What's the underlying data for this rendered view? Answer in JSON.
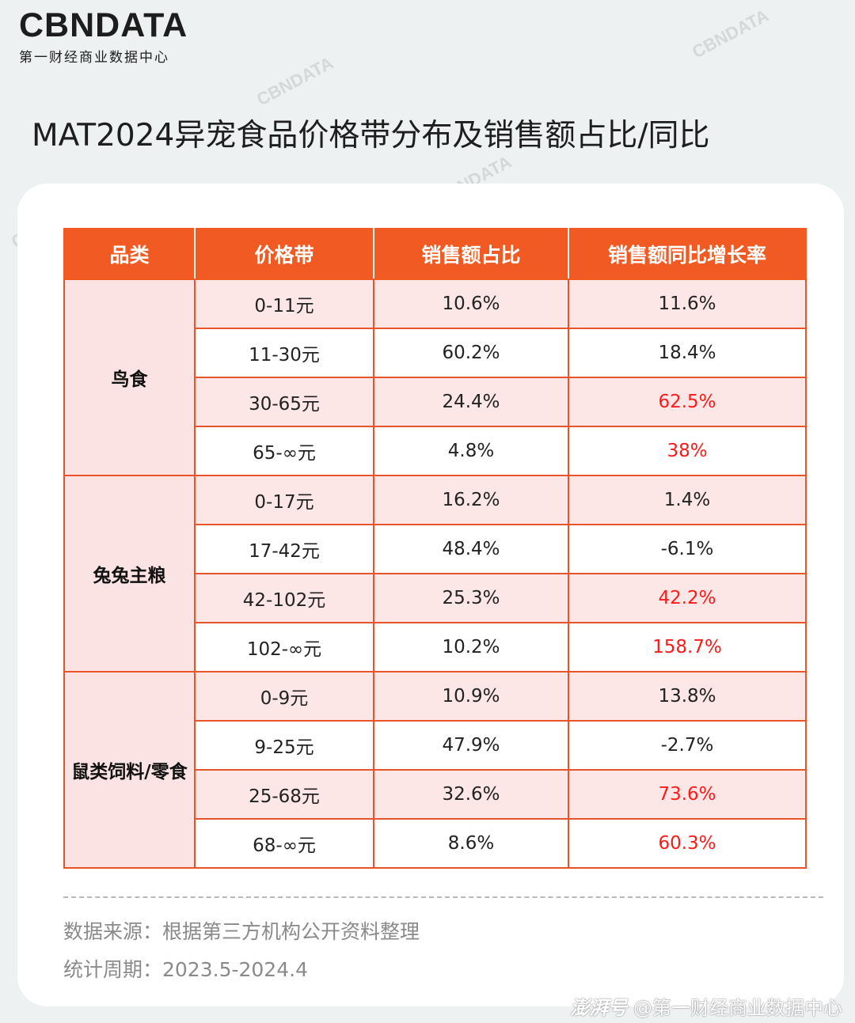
{
  "logo": {
    "main": "CBNDATA",
    "sub": "第一财经商业数据中心"
  },
  "title": "MAT2024异宠食品价格带分布及销售额占比/同比",
  "table": {
    "headers": [
      "品类",
      "价格带",
      "销售额占比",
      "销售额同比增长率"
    ],
    "groups": [
      {
        "category": "鸟食",
        "rows": [
          {
            "price": "0-11元",
            "share": "10.6%",
            "growth": "11.6%",
            "highlight": false
          },
          {
            "price": "11-30元",
            "share": "60.2%",
            "growth": "18.4%",
            "highlight": false
          },
          {
            "price": "30-65元",
            "share": "24.4%",
            "growth": "62.5%",
            "highlight": true
          },
          {
            "price": "65-∞元",
            "share": "4.8%",
            "growth": "38%",
            "highlight": true
          }
        ]
      },
      {
        "category": "兔兔主粮",
        "rows": [
          {
            "price": "0-17元",
            "share": "16.2%",
            "growth": "1.4%",
            "highlight": false
          },
          {
            "price": "17-42元",
            "share": "48.4%",
            "growth": "-6.1%",
            "highlight": false
          },
          {
            "price": "42-102元",
            "share": "25.3%",
            "growth": "42.2%",
            "highlight": true
          },
          {
            "price": "102-∞元",
            "share": "10.2%",
            "growth": "158.7%",
            "highlight": true
          }
        ]
      },
      {
        "category": "鼠类饲料/零食",
        "rows": [
          {
            "price": "0-9元",
            "share": "10.9%",
            "growth": "13.8%",
            "highlight": false
          },
          {
            "price": "9-25元",
            "share": "47.9%",
            "growth": "-2.7%",
            "highlight": false
          },
          {
            "price": "25-68元",
            "share": "32.6%",
            "growth": "73.6%",
            "highlight": true
          },
          {
            "price": "68-∞元",
            "share": "8.6%",
            "growth": "60.3%",
            "highlight": true
          }
        ]
      }
    ]
  },
  "notes": {
    "source": "数据来源：根据第三方机构公开资料整理",
    "period": "统计周期：2023.5-2024.4"
  },
  "footer": {
    "brand": "澎湃号",
    "account": "@第一财经商业数据中心"
  },
  "colors": {
    "accent": "#f15a22",
    "highlight_text": "#ff1a1a",
    "row_tint": "#fce6e6"
  }
}
